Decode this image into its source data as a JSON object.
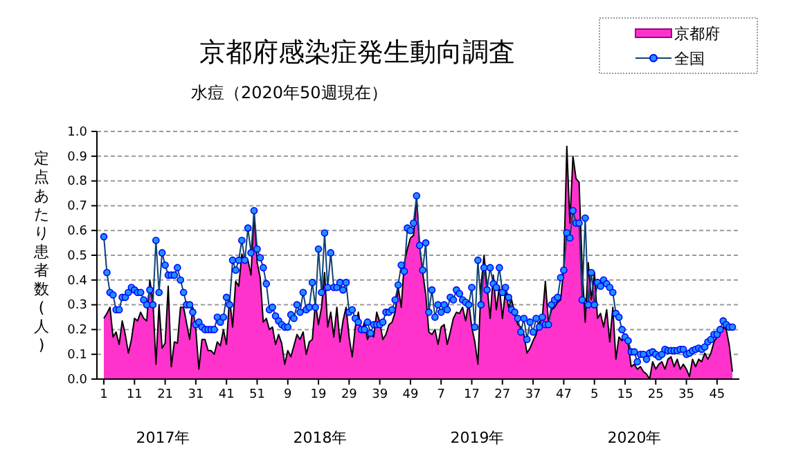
{
  "chart_data": {
    "type": "area",
    "title": "京都府感染症発生動向調査",
    "subtitle": "水痘（2020年50週現在）",
    "ylabel": "定点あたり患者数(人)",
    "categories": [
      "1",
      null,
      null,
      null,
      null,
      null,
      null,
      null,
      null,
      null,
      "11",
      null,
      null,
      null,
      null,
      null,
      null,
      null,
      null,
      null,
      "21",
      null,
      null,
      null,
      null,
      null,
      null,
      null,
      null,
      null,
      "31",
      null,
      null,
      null,
      null,
      null,
      null,
      null,
      null,
      null,
      "41",
      null,
      null,
      null,
      null,
      null,
      null,
      null,
      null,
      null,
      "51",
      null,
      null,
      null,
      null,
      null,
      null,
      null,
      null,
      null,
      "9",
      null,
      null,
      null,
      null,
      null,
      null,
      null,
      null,
      null,
      "19",
      null,
      null,
      null,
      null,
      null,
      null,
      null,
      null,
      null,
      "29",
      null,
      null,
      null,
      null,
      null,
      null,
      null,
      null,
      null,
      "39",
      null,
      null,
      null,
      null,
      null,
      null,
      null,
      null,
      null,
      "49",
      null,
      null,
      null,
      null,
      null,
      null,
      null,
      null,
      null,
      "7",
      null,
      null,
      null,
      null,
      null,
      null,
      null,
      null,
      null,
      "17",
      null,
      null,
      null,
      null,
      null,
      null,
      null,
      null,
      null,
      "27",
      null,
      null,
      null,
      null,
      null,
      null,
      null,
      null,
      null,
      "37",
      null,
      null,
      null,
      null,
      null,
      null,
      null,
      null,
      null,
      "47",
      null,
      null,
      null,
      null,
      null,
      null,
      null,
      null,
      null,
      "5",
      null,
      null,
      null,
      null,
      null,
      null,
      null,
      null,
      null,
      "15",
      null,
      null,
      null,
      null,
      null,
      null,
      null,
      null,
      null,
      "25",
      null,
      null,
      null,
      null,
      null,
      null,
      null,
      null,
      null,
      "35",
      null,
      null,
      null,
      null,
      null,
      null,
      null,
      null,
      null,
      "45",
      null,
      null,
      null,
      null,
      null
    ],
    "series": [
      {
        "name": "京都府",
        "color": "#ff33cc",
        "values": [
          0.245,
          0.265,
          0.29,
          0.17,
          0.19,
          0.14,
          0.235,
          0.18,
          0.105,
          0.16,
          0.245,
          0.235,
          0.27,
          0.245,
          0.235,
          0.4,
          0.32,
          0.06,
          0.3,
          0.125,
          0.145,
          0.375,
          0.05,
          0.15,
          0.145,
          0.29,
          0.29,
          0.225,
          0.16,
          0.29,
          0.2,
          0.04,
          0.16,
          0.16,
          0.115,
          0.115,
          0.1,
          0.15,
          0.135,
          0.2,
          0.14,
          0.33,
          0.21,
          0.395,
          0.375,
          0.505,
          0.47,
          0.48,
          0.42,
          0.67,
          0.47,
          0.41,
          0.23,
          0.245,
          0.2,
          0.21,
          0.14,
          0.18,
          0.145,
          0.06,
          0.115,
          0.09,
          0.135,
          0.18,
          0.16,
          0.19,
          0.1,
          0.15,
          0.16,
          0.31,
          0.22,
          0.29,
          0.43,
          0.21,
          0.27,
          0.17,
          0.29,
          0.15,
          0.235,
          0.29,
          0.17,
          0.09,
          0.21,
          0.27,
          0.19,
          0.23,
          0.16,
          0.19,
          0.17,
          0.27,
          0.23,
          0.16,
          0.18,
          0.22,
          0.23,
          0.27,
          0.37,
          0.29,
          0.47,
          0.525,
          0.57,
          0.58,
          0.73,
          0.535,
          0.43,
          0.34,
          0.19,
          0.18,
          0.2,
          0.14,
          0.21,
          0.22,
          0.14,
          0.19,
          0.245,
          0.27,
          0.265,
          0.29,
          0.235,
          0.31,
          0.21,
          0.15,
          0.06,
          0.375,
          0.5,
          0.375,
          0.245,
          0.42,
          0.28,
          0.375,
          0.245,
          0.36,
          0.29,
          0.32,
          0.265,
          0.22,
          0.21,
          0.18,
          0.105,
          0.125,
          0.155,
          0.18,
          0.23,
          0.245,
          0.395,
          0.23,
          0.28,
          0.29,
          0.31,
          0.32,
          0.45,
          0.94,
          0.63,
          0.9,
          0.81,
          0.795,
          0.45,
          0.23,
          0.47,
          0.32,
          0.43,
          0.245,
          0.265,
          0.21,
          0.28,
          0.15,
          0.29,
          0.08,
          0.17,
          0.155,
          0.18,
          0.145,
          0.05,
          0.06,
          0.04,
          0.05,
          0.03,
          0.02,
          0.0,
          0.07,
          0.04,
          0.06,
          0.07,
          0.04,
          0.08,
          0.09,
          0.05,
          0.08,
          0.04,
          0.06,
          0.04,
          0.01,
          0.08,
          0.05,
          0.08,
          0.07,
          0.105,
          0.08,
          0.105,
          0.15,
          0.17,
          0.19,
          0.21,
          0.2,
          0.135,
          0.03
        ]
      },
      {
        "name": "全国",
        "type": "line",
        "color": "#1e90ff",
        "marker": "circle",
        "values": [
          0.575,
          0.43,
          0.35,
          0.34,
          0.28,
          0.28,
          0.33,
          0.33,
          0.35,
          0.37,
          0.36,
          0.35,
          0.35,
          0.32,
          0.3,
          0.36,
          0.3,
          0.56,
          0.35,
          0.51,
          0.46,
          0.42,
          0.42,
          0.42,
          0.45,
          0.4,
          0.35,
          0.3,
          0.3,
          0.27,
          0.22,
          0.23,
          0.21,
          0.2,
          0.2,
          0.2,
          0.2,
          0.25,
          0.23,
          0.25,
          0.33,
          0.3,
          0.48,
          0.44,
          0.48,
          0.56,
          0.48,
          0.61,
          0.51,
          0.68,
          0.525,
          0.49,
          0.45,
          0.385,
          0.28,
          0.29,
          0.255,
          0.235,
          0.22,
          0.21,
          0.21,
          0.26,
          0.245,
          0.3,
          0.27,
          0.35,
          0.28,
          0.29,
          0.39,
          0.29,
          0.525,
          0.35,
          0.59,
          0.37,
          0.51,
          0.37,
          0.37,
          0.39,
          0.36,
          0.39,
          0.27,
          0.28,
          0.245,
          0.23,
          0.2,
          0.2,
          0.23,
          0.185,
          0.22,
          0.22,
          0.22,
          0.23,
          0.27,
          0.27,
          0.28,
          0.32,
          0.38,
          0.46,
          0.435,
          0.61,
          0.6,
          0.63,
          0.74,
          0.54,
          0.44,
          0.55,
          0.27,
          0.36,
          0.25,
          0.3,
          0.27,
          0.3,
          0.28,
          0.33,
          0.32,
          0.36,
          0.345,
          0.32,
          0.31,
          0.3,
          0.37,
          0.21,
          0.48,
          0.3,
          0.45,
          0.36,
          0.45,
          0.385,
          0.37,
          0.45,
          0.35,
          0.37,
          0.33,
          0.28,
          0.27,
          0.245,
          0.19,
          0.245,
          0.16,
          0.23,
          0.19,
          0.245,
          0.21,
          0.25,
          0.22,
          0.22,
          0.3,
          0.32,
          0.33,
          0.41,
          0.44,
          0.59,
          0.57,
          0.68,
          0.63,
          0.63,
          0.32,
          0.65,
          0.3,
          0.43,
          0.3,
          0.39,
          0.375,
          0.4,
          0.385,
          0.37,
          0.35,
          0.265,
          0.25,
          0.2,
          0.17,
          0.155,
          0.11,
          0.11,
          0.07,
          0.1,
          0.1,
          0.08,
          0.105,
          0.11,
          0.1,
          0.09,
          0.1,
          0.12,
          0.115,
          0.115,
          0.115,
          0.115,
          0.12,
          0.12,
          0.1,
          0.105,
          0.115,
          0.12,
          0.125,
          0.12,
          0.13,
          0.15,
          0.16,
          0.18,
          0.18,
          0.2,
          0.235,
          0.22,
          0.21,
          0.21
        ]
      }
    ],
    "ylim": [
      0,
      1
    ],
    "yticks": [
      {
        "value": 0,
        "label": "0.0"
      },
      {
        "value": 0.1,
        "label": "0.1"
      },
      {
        "value": 0.2,
        "label": "0.2"
      },
      {
        "value": 0.3,
        "label": "0.3"
      },
      {
        "value": 0.4,
        "label": "0.4"
      },
      {
        "value": 0.5,
        "label": "0.5"
      },
      {
        "value": 0.6,
        "label": "0.6"
      },
      {
        "value": 0.7,
        "label": "0.7"
      },
      {
        "value": 0.8,
        "label": "0.8"
      },
      {
        "value": 0.9,
        "label": "0.9"
      },
      {
        "value": 1,
        "label": "1.0"
      }
    ],
    "grid": "y",
    "legend": "top right",
    "annotations": [
      "2017年",
      "2018年",
      "2019年",
      "2020年"
    ]
  }
}
